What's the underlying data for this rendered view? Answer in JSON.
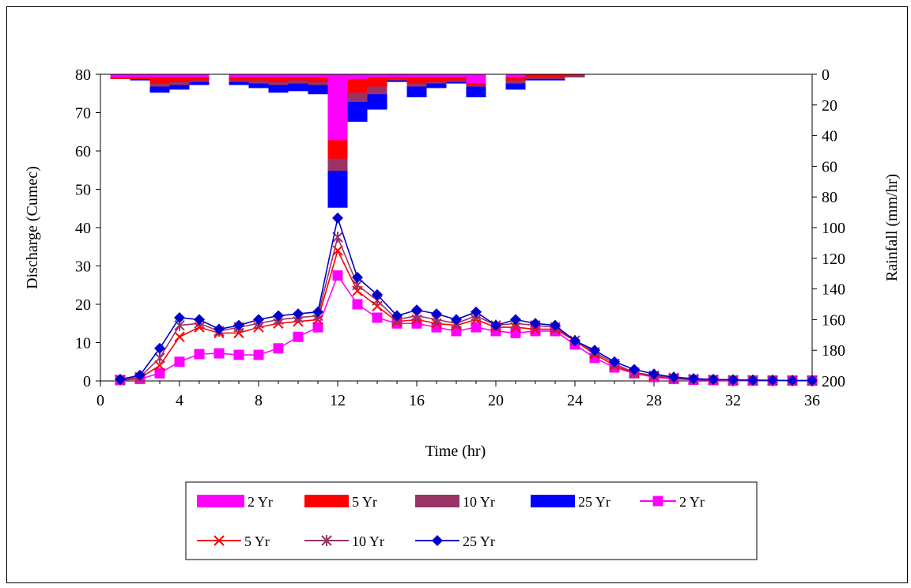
{
  "chart_data": {
    "type": "line",
    "xlabel": "Time (hr)",
    "ylabel": "Discharge (Cumec)",
    "y2label": "Rainfall (mm/hr)",
    "xlim": [
      0,
      36
    ],
    "ylim": [
      0,
      80
    ],
    "y2lim": [
      0,
      200
    ],
    "y2_inverted": true,
    "x_ticks": [
      0,
      4,
      8,
      12,
      16,
      20,
      24,
      28,
      32,
      36
    ],
    "y_ticks": [
      0,
      10,
      20,
      30,
      40,
      50,
      60,
      70,
      80
    ],
    "y2_ticks": [
      0,
      20,
      40,
      60,
      80,
      100,
      120,
      140,
      160,
      180,
      200
    ],
    "grid": false,
    "legend_position": "bottom",
    "rainfall_series": [
      {
        "name": "2 Yr",
        "color": "#ff00ff",
        "hours": [
          1,
          2,
          3,
          4,
          5,
          6,
          7,
          8,
          9,
          10,
          11,
          12,
          13,
          14,
          15,
          16,
          17,
          18,
          19,
          20,
          21,
          22,
          23,
          24
        ],
        "values": [
          2,
          2,
          2,
          2,
          2,
          0,
          2,
          2,
          2,
          2,
          2,
          43,
          3,
          2,
          2,
          2,
          2,
          2,
          6,
          0,
          2,
          0,
          0,
          0
        ]
      },
      {
        "name": "5 Yr",
        "color": "#ff0000",
        "hours": [
          1,
          2,
          3,
          4,
          5,
          6,
          7,
          8,
          9,
          10,
          11,
          12,
          13,
          14,
          15,
          16,
          17,
          18,
          19,
          20,
          21,
          22,
          23,
          24
        ],
        "values": [
          3,
          3,
          6,
          5,
          4,
          0,
          4,
          4,
          5,
          4,
          5,
          55,
          12,
          8,
          3,
          6,
          5,
          4,
          7,
          0,
          4,
          2,
          2,
          1
        ]
      },
      {
        "name": "10 Yr",
        "color": "#993366",
        "hours": [
          1,
          2,
          3,
          4,
          5,
          6,
          7,
          8,
          9,
          10,
          11,
          12,
          13,
          14,
          15,
          16,
          17,
          18,
          19,
          20,
          21,
          22,
          23,
          24
        ],
        "values": [
          3,
          3,
          8,
          7,
          5,
          0,
          5,
          6,
          7,
          6,
          7,
          63,
          18,
          13,
          4,
          8,
          6,
          5,
          8,
          0,
          6,
          3,
          3,
          2
        ]
      },
      {
        "name": "25 Yr",
        "color": "#0000ff",
        "hours": [
          1,
          2,
          3,
          4,
          5,
          6,
          7,
          8,
          9,
          10,
          11,
          12,
          13,
          14,
          15,
          16,
          17,
          18,
          19,
          20,
          21,
          22,
          23,
          24
        ],
        "values": [
          3,
          4,
          12,
          10,
          7,
          0,
          7,
          9,
          12,
          11,
          13,
          87,
          31,
          23,
          5,
          15,
          9,
          6,
          15,
          0,
          10,
          4,
          4,
          2
        ]
      }
    ],
    "discharge_series": [
      {
        "name": "2 Yr",
        "color": "#ff00ff",
        "marker": "square",
        "x": [
          1,
          2,
          3,
          4,
          5,
          6,
          7,
          8,
          9,
          10,
          11,
          12,
          13,
          14,
          15,
          16,
          17,
          18,
          19,
          20,
          21,
          22,
          23,
          24,
          25,
          26,
          27,
          28,
          29,
          30,
          31,
          32,
          33,
          34,
          35,
          36
        ],
        "values": [
          0.2,
          0.5,
          2,
          5,
          7,
          7.2,
          6.8,
          6.8,
          8.5,
          11.5,
          14,
          27.5,
          20,
          16.5,
          15,
          15,
          14,
          13,
          14,
          13,
          12.5,
          13,
          13,
          9.5,
          6,
          3.5,
          2,
          1,
          0.5,
          0.3,
          0.2,
          0.1,
          0.1,
          0.1,
          0.1,
          0.1
        ]
      },
      {
        "name": "5 Yr",
        "color": "#ff0000",
        "marker": "x",
        "x": [
          1,
          2,
          3,
          4,
          5,
          6,
          7,
          8,
          9,
          10,
          11,
          12,
          13,
          14,
          15,
          16,
          17,
          18,
          19,
          20,
          21,
          22,
          23,
          24,
          25,
          26,
          27,
          28,
          29,
          30,
          31,
          32,
          33,
          34,
          35,
          36
        ],
        "values": [
          0.3,
          0.8,
          4,
          11.5,
          14,
          12.5,
          12.5,
          14,
          15,
          15.5,
          16,
          34,
          23.5,
          19.5,
          15.5,
          16,
          15,
          14.5,
          16,
          14,
          14,
          13.5,
          13.5,
          10.5,
          7,
          4,
          2,
          1.2,
          0.7,
          0.4,
          0.3,
          0.2,
          0.2,
          0.1,
          0.1,
          0.1
        ]
      },
      {
        "name": "10 Yr",
        "color": "#993366",
        "marker": "asterisk",
        "x": [
          1,
          2,
          3,
          4,
          5,
          6,
          7,
          8,
          9,
          10,
          11,
          12,
          13,
          14,
          15,
          16,
          17,
          18,
          19,
          20,
          21,
          22,
          23,
          24,
          25,
          26,
          27,
          28,
          29,
          30,
          31,
          32,
          33,
          34,
          35,
          36
        ],
        "values": [
          0.3,
          1,
          6,
          14.5,
          15,
          13,
          14,
          15,
          16,
          16.5,
          17,
          37.5,
          25,
          21,
          16,
          17,
          16,
          15,
          17,
          14.5,
          15,
          14.5,
          14,
          10.5,
          7.5,
          4.5,
          2.2,
          1.4,
          0.8,
          0.5,
          0.3,
          0.2,
          0.2,
          0.1,
          0.1,
          0.1
        ]
      },
      {
        "name": "25 Yr",
        "color": "#0000cc",
        "marker": "diamond",
        "x": [
          1,
          2,
          3,
          4,
          5,
          6,
          7,
          8,
          9,
          10,
          11,
          12,
          13,
          14,
          15,
          16,
          17,
          18,
          19,
          20,
          21,
          22,
          23,
          24,
          25,
          26,
          27,
          28,
          29,
          30,
          31,
          32,
          33,
          34,
          35,
          36
        ],
        "values": [
          0.4,
          1.5,
          8.5,
          16.5,
          16,
          13.5,
          14.5,
          16,
          17,
          17.5,
          18,
          42.5,
          27,
          22.5,
          17,
          18.5,
          17.5,
          16,
          18,
          14.5,
          16,
          15,
          14.5,
          10.5,
          8,
          5,
          3,
          1.8,
          1,
          0.6,
          0.4,
          0.3,
          0.2,
          0.2,
          0.1,
          0.1
        ]
      }
    ],
    "legend": {
      "row1": [
        "2 Yr",
        "5 Yr",
        "10 Yr",
        "25 Yr",
        "2 Yr"
      ],
      "row2": [
        "5 Yr",
        "10 Yr",
        "25 Yr"
      ]
    }
  }
}
